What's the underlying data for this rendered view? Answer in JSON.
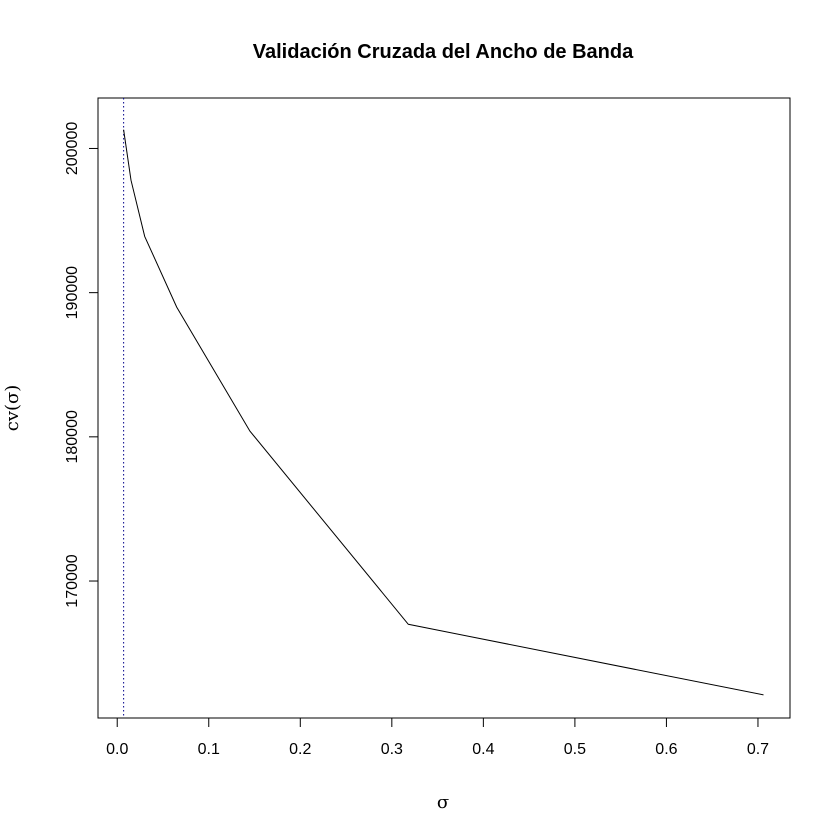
{
  "chart_data": {
    "type": "line",
    "title": "Validación Cruzada del Ancho de Banda",
    "xlabel": "σ",
    "ylabel": "cv(σ)",
    "xlim": [
      -0.021,
      0.735
    ],
    "ylim": [
      160500,
      203500
    ],
    "x_ticks": [
      0.0,
      0.1,
      0.2,
      0.3,
      0.4,
      0.5,
      0.6,
      0.7
    ],
    "x_tick_labels": [
      "0.0",
      "0.1",
      "0.2",
      "0.3",
      "0.4",
      "0.5",
      "0.6",
      "0.7"
    ],
    "y_ticks": [
      170000,
      180000,
      190000,
      200000
    ],
    "y_tick_labels": [
      "170000",
      "180000",
      "190000",
      "200000"
    ],
    "grid": false,
    "legend": false,
    "series": [
      {
        "x": [
          0.007,
          0.015,
          0.03,
          0.065,
          0.145,
          0.318,
          0.706
        ],
        "y": [
          201300,
          197800,
          193900,
          189000,
          180400,
          167000,
          162100
        ],
        "color": "#000000"
      }
    ],
    "reference_line": {
      "orientation": "vertical",
      "x": 0.007,
      "style": "dotted",
      "color": "#00008b"
    }
  }
}
